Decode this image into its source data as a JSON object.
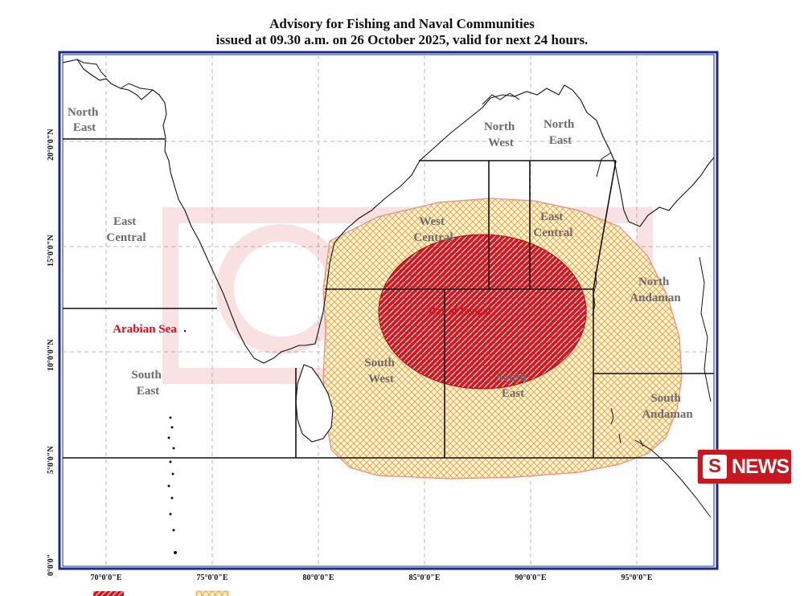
{
  "title_line1": "Advisory for Fishing and Naval Communities",
  "title_line2": "issued at 09.30 a.m. on 26 October 2025, valid for next 24 hours.",
  "labels": {
    "arabian_ne": "North\nEast",
    "arabian_ec": "East\nCentral",
    "arabian_sea": "Arabian Sea",
    "arabian_se": "South\nEast",
    "bay_nw": "North\nWest",
    "bay_ne": "North\nEast",
    "bay_wc": "West\nCentral",
    "bay_ec": "East\nCentral",
    "north_andaman": "North\nAndaman",
    "bay_sw": "South\nWest",
    "bay_se": "South\nEast",
    "south_andaman": "South\nAndaman",
    "bay_of_bengal": "Bay of Bengal"
  },
  "lat_ticks": [
    "0°0'0\"",
    "5°0'0\"N",
    "10°0'0\"N",
    "15°0'0\"N",
    "20°0'0\"N"
  ],
  "lon_ticks": [
    "70°0'0\"E",
    "75°0'0\"E",
    "80°0'0\"E",
    "85°0'0\"E",
    "90°0'0\"E",
    "95°0'0\"E"
  ],
  "watermark_badge": "NEWS",
  "legend": {
    "high_color": "#d0101a",
    "low_color": "#f5c46b"
  },
  "colors": {
    "high_risk": "#d0101a",
    "moderate_risk": "#f0a030",
    "frame": "#1a2a8a"
  }
}
